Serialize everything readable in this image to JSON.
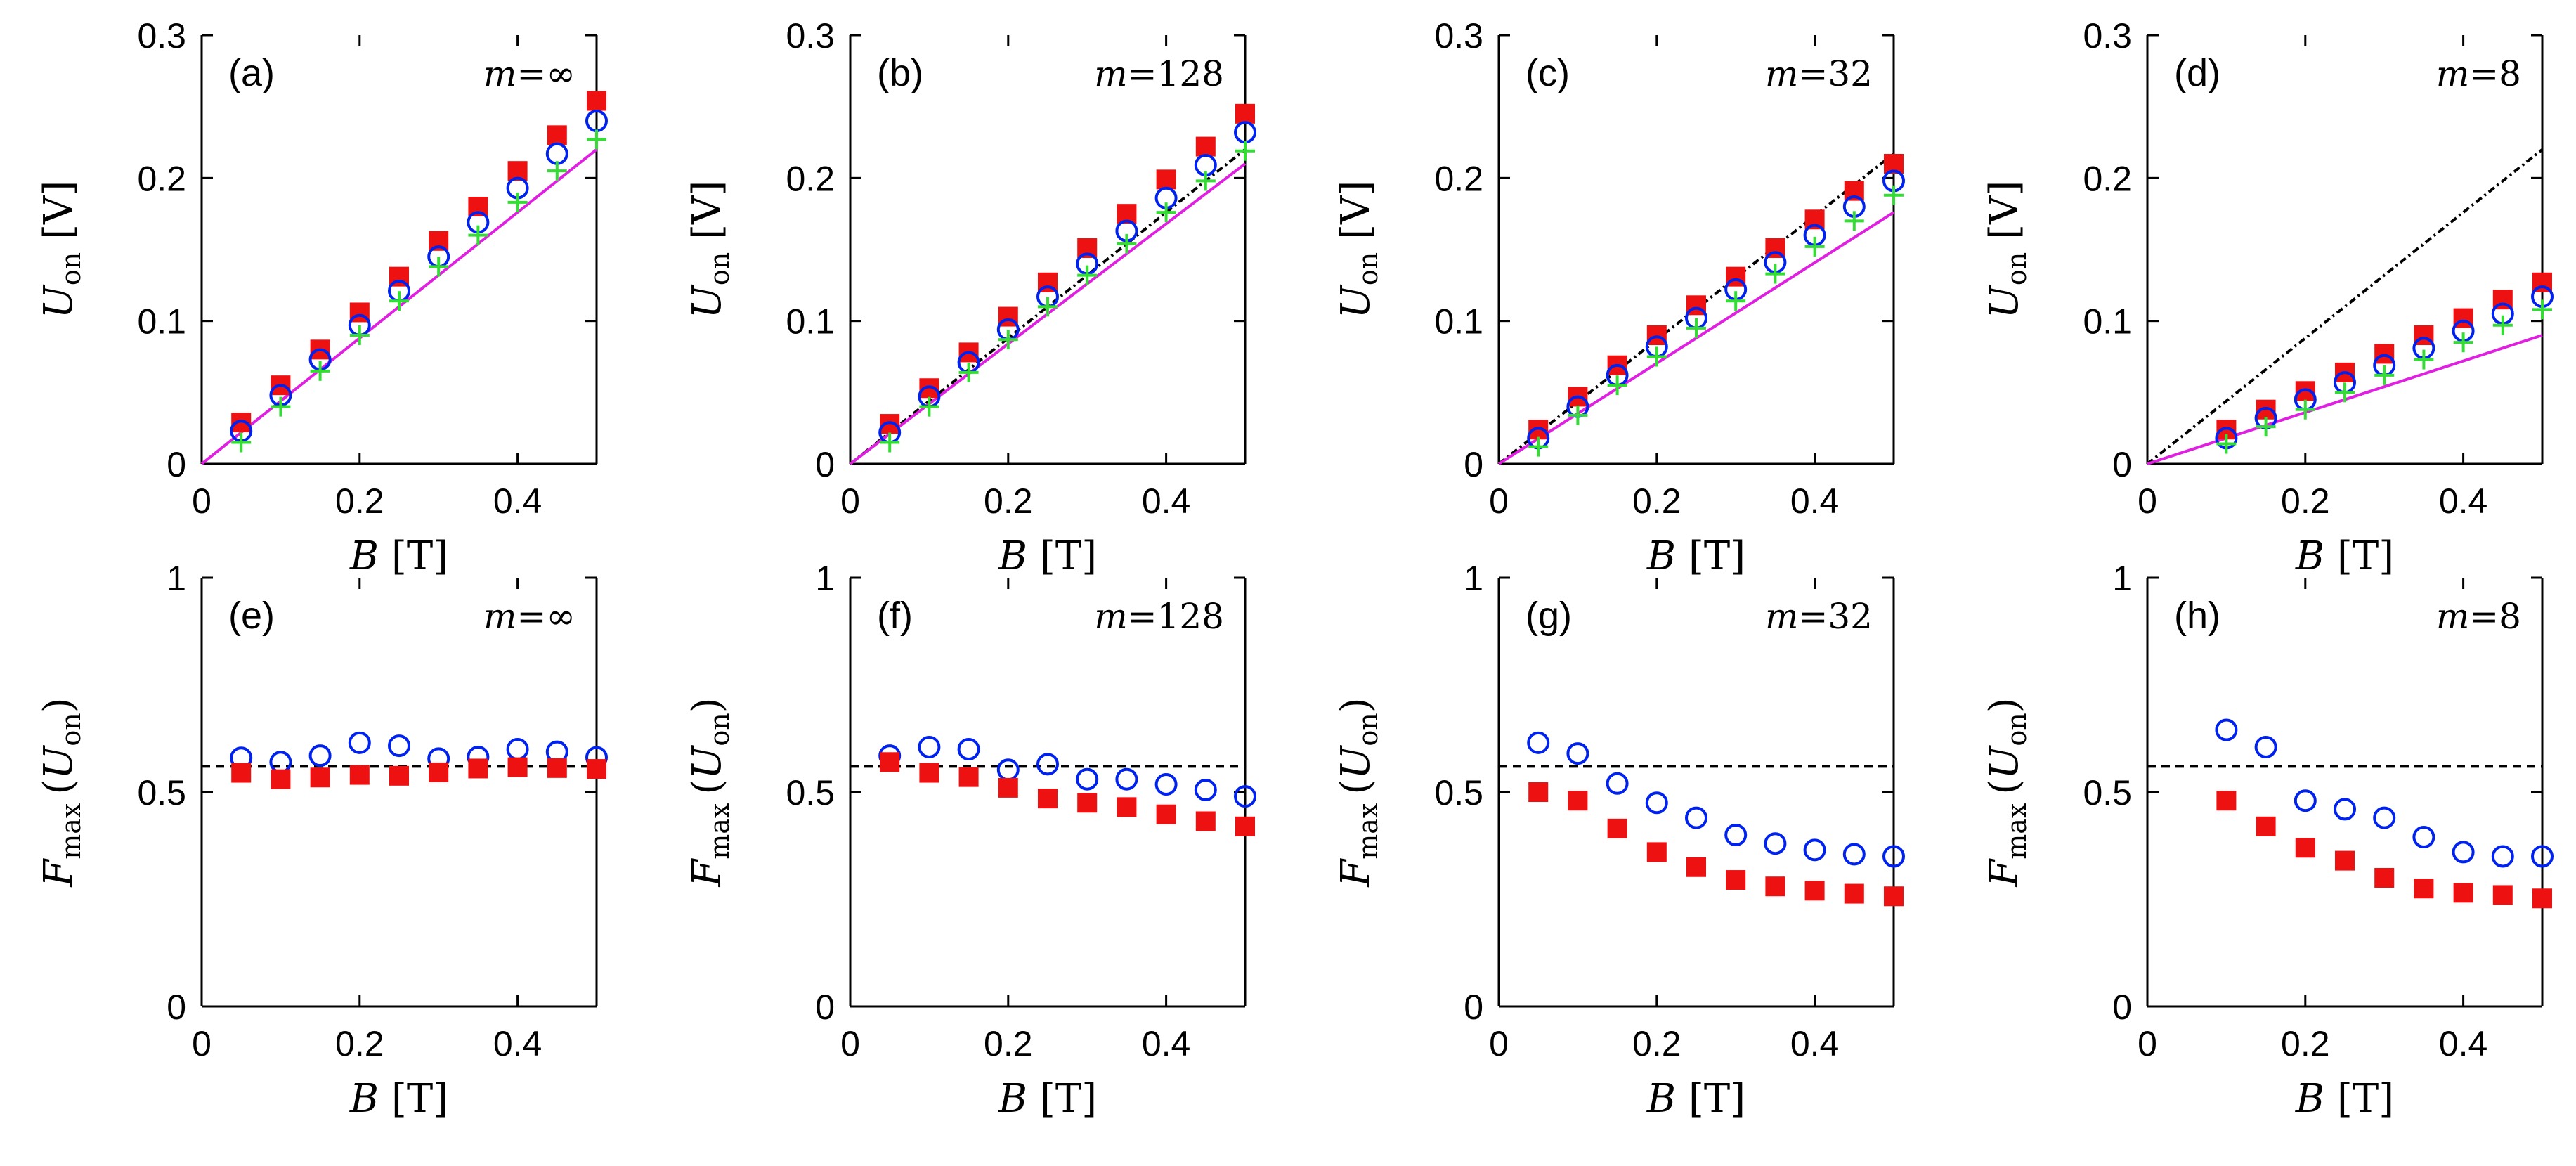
{
  "colors": {
    "square": "#ee1111",
    "circle": "#0022ee",
    "plus": "#33dd33",
    "magenta_line": "#e020e0",
    "ref_line": "#000000"
  },
  "axes_text": {
    "x_title_var": "B",
    "x_title_unit": "[T]",
    "y_top_var": "U",
    "y_top_sub": "on",
    "y_top_unit": "[V]",
    "y_bot_var": "F",
    "y_bot_sub": "max",
    "y_bot_arg_open": "(",
    "y_bot_arg_var": "U",
    "y_bot_arg_sub": "on",
    "y_bot_arg_close": ")"
  },
  "chart_data": [
    {
      "type": "scatter",
      "panel": "(a)",
      "m_var": "m",
      "m_val": "=∞",
      "xlim": [
        0,
        0.5
      ],
      "ylim": [
        0,
        0.3
      ],
      "xticks": [
        "0",
        "0.2",
        "0.4"
      ],
      "yticks": [
        "0",
        "0.1",
        "0.2",
        "0.3"
      ],
      "x": [
        0.05,
        0.1,
        0.15,
        0.2,
        0.25,
        0.3,
        0.35,
        0.4,
        0.45,
        0.5
      ],
      "series": [
        {
          "name": "squares",
          "marker": "square",
          "values": [
            0.029,
            0.055,
            0.08,
            0.106,
            0.131,
            0.156,
            0.18,
            0.205,
            0.23,
            0.254
          ]
        },
        {
          "name": "circles",
          "marker": "circle",
          "values": [
            0.023,
            0.048,
            0.073,
            0.097,
            0.121,
            0.145,
            0.169,
            0.193,
            0.217,
            0.24
          ]
        },
        {
          "name": "plus",
          "marker": "plus",
          "values": [
            0.015,
            0.04,
            0.065,
            0.09,
            0.114,
            0.138,
            0.16,
            0.183,
            0.205,
            0.227
          ]
        }
      ],
      "lines": [
        {
          "name": "magenta",
          "x": [
            0,
            0.5
          ],
          "y": [
            0,
            0.22
          ]
        }
      ]
    },
    {
      "type": "scatter",
      "panel": "(b)",
      "m_var": "m",
      "m_val": "=128",
      "xlim": [
        0,
        0.5
      ],
      "ylim": [
        0,
        0.3
      ],
      "xticks": [
        "0",
        "0.2",
        "0.4"
      ],
      "yticks": [
        "0",
        "0.1",
        "0.2",
        "0.3"
      ],
      "x": [
        0.05,
        0.1,
        0.15,
        0.2,
        0.25,
        0.3,
        0.35,
        0.4,
        0.45,
        0.5
      ],
      "series": [
        {
          "name": "squares",
          "marker": "square",
          "values": [
            0.028,
            0.053,
            0.078,
            0.103,
            0.127,
            0.151,
            0.175,
            0.199,
            0.222,
            0.245
          ]
        },
        {
          "name": "circles",
          "marker": "circle",
          "values": [
            0.022,
            0.047,
            0.071,
            0.094,
            0.117,
            0.14,
            0.163,
            0.186,
            0.209,
            0.232
          ]
        },
        {
          "name": "plus",
          "marker": "plus",
          "values": [
            0.015,
            0.04,
            0.064,
            0.087,
            0.11,
            0.132,
            0.154,
            0.176,
            0.198,
            0.219
          ]
        }
      ],
      "lines": [
        {
          "name": "black-dashed",
          "style": "dashdot",
          "x": [
            0,
            0.5
          ],
          "y": [
            0,
            0.22
          ]
        },
        {
          "name": "magenta",
          "x": [
            0,
            0.5
          ],
          "y": [
            0,
            0.21
          ]
        }
      ]
    },
    {
      "type": "scatter",
      "panel": "(c)",
      "m_var": "m",
      "m_val": "=32",
      "xlim": [
        0,
        0.5
      ],
      "ylim": [
        0,
        0.3
      ],
      "xticks": [
        "0",
        "0.2",
        "0.4"
      ],
      "yticks": [
        "0",
        "0.1",
        "0.2",
        "0.3"
      ],
      "x": [
        0.05,
        0.1,
        0.15,
        0.2,
        0.25,
        0.3,
        0.35,
        0.4,
        0.45,
        0.5
      ],
      "series": [
        {
          "name": "squares",
          "marker": "square",
          "values": [
            0.024,
            0.047,
            0.069,
            0.09,
            0.111,
            0.131,
            0.151,
            0.171,
            0.191,
            0.21
          ]
        },
        {
          "name": "circles",
          "marker": "circle",
          "values": [
            0.018,
            0.04,
            0.062,
            0.082,
            0.102,
            0.122,
            0.141,
            0.16,
            0.18,
            0.198
          ]
        },
        {
          "name": "plus",
          "marker": "plus",
          "values": [
            0.012,
            0.034,
            0.055,
            0.075,
            0.095,
            0.114,
            0.133,
            0.152,
            0.17,
            0.188
          ]
        }
      ],
      "lines": [
        {
          "name": "black-dashed",
          "style": "dashdot",
          "x": [
            0,
            0.5
          ],
          "y": [
            0,
            0.217
          ]
        },
        {
          "name": "magenta",
          "x": [
            0,
            0.5
          ],
          "y": [
            0,
            0.176
          ]
        }
      ]
    },
    {
      "type": "scatter",
      "panel": "(d)",
      "m_var": "m",
      "m_val": "=8",
      "xlim": [
        0,
        0.5
      ],
      "ylim": [
        0,
        0.3
      ],
      "xticks": [
        "0",
        "0.2",
        "0.4"
      ],
      "yticks": [
        "0",
        "0.1",
        "0.2",
        "0.3"
      ],
      "x": [
        0.1,
        0.15,
        0.2,
        0.25,
        0.3,
        0.35,
        0.4,
        0.45,
        0.5
      ],
      "series": [
        {
          "name": "squares",
          "marker": "square",
          "values": [
            0.024,
            0.038,
            0.051,
            0.064,
            0.077,
            0.09,
            0.102,
            0.115,
            0.127
          ]
        },
        {
          "name": "circles",
          "marker": "circle",
          "values": [
            0.018,
            0.032,
            0.045,
            0.057,
            0.069,
            0.081,
            0.093,
            0.105,
            0.117
          ]
        },
        {
          "name": "plus",
          "marker": "plus",
          "values": [
            0.014,
            0.026,
            0.038,
            0.05,
            0.062,
            0.073,
            0.085,
            0.097,
            0.108
          ]
        }
      ],
      "lines": [
        {
          "name": "black-dashed",
          "style": "dashdot",
          "x": [
            0,
            0.5
          ],
          "y": [
            0,
            0.22
          ]
        },
        {
          "name": "magenta",
          "x": [
            0,
            0.5
          ],
          "y": [
            0,
            0.09
          ]
        }
      ]
    },
    {
      "type": "scatter",
      "panel": "(e)",
      "m_var": "m",
      "m_val": "=∞",
      "xlim": [
        0,
        0.5
      ],
      "ylim": [
        0,
        1
      ],
      "xticks": [
        "0",
        "0.2",
        "0.4"
      ],
      "yticks": [
        "0",
        "0.5",
        "1"
      ],
      "x": [
        0.05,
        0.1,
        0.15,
        0.2,
        0.25,
        0.3,
        0.35,
        0.4,
        0.45,
        0.5
      ],
      "series": [
        {
          "name": "circles",
          "marker": "circle",
          "values": [
            0.58,
            0.57,
            0.585,
            0.615,
            0.608,
            0.578,
            0.582,
            0.6,
            0.594,
            0.581
          ]
        },
        {
          "name": "squares",
          "marker": "square",
          "values": [
            0.545,
            0.53,
            0.534,
            0.54,
            0.538,
            0.546,
            0.555,
            0.558,
            0.556,
            0.554
          ]
        }
      ],
      "lines": [
        {
          "name": "black-dashed",
          "style": "dash",
          "x": [
            0,
            0.5
          ],
          "y": [
            0.56,
            0.56
          ]
        }
      ]
    },
    {
      "type": "scatter",
      "panel": "(f)",
      "m_var": "m",
      "m_val": "=128",
      "xlim": [
        0,
        0.5
      ],
      "ylim": [
        0,
        1
      ],
      "xticks": [
        "0",
        "0.2",
        "0.4"
      ],
      "yticks": [
        "0",
        "0.5",
        "1"
      ],
      "x": [
        0.05,
        0.1,
        0.15,
        0.2,
        0.25,
        0.3,
        0.35,
        0.4,
        0.45,
        0.5
      ],
      "series": [
        {
          "name": "circles",
          "marker": "circle",
          "values": [
            0.585,
            0.605,
            0.6,
            0.552,
            0.565,
            0.53,
            0.53,
            0.518,
            0.505,
            0.49
          ]
        },
        {
          "name": "squares",
          "marker": "square",
          "values": [
            0.57,
            0.545,
            0.535,
            0.51,
            0.485,
            0.475,
            0.465,
            0.448,
            0.432,
            0.42
          ]
        }
      ],
      "lines": [
        {
          "name": "black-dashed",
          "style": "dash",
          "x": [
            0,
            0.5
          ],
          "y": [
            0.56,
            0.56
          ]
        }
      ]
    },
    {
      "type": "scatter",
      "panel": "(g)",
      "m_var": "m",
      "m_val": "=32",
      "xlim": [
        0,
        0.5
      ],
      "ylim": [
        0,
        1
      ],
      "xticks": [
        "0",
        "0.2",
        "0.4"
      ],
      "yticks": [
        "0",
        "0.5",
        "1"
      ],
      "x": [
        0.05,
        0.1,
        0.15,
        0.2,
        0.25,
        0.3,
        0.35,
        0.4,
        0.45,
        0.5
      ],
      "series": [
        {
          "name": "circles",
          "marker": "circle",
          "values": [
            0.615,
            0.59,
            0.52,
            0.475,
            0.44,
            0.4,
            0.38,
            0.365,
            0.355,
            0.35
          ]
        },
        {
          "name": "squares",
          "marker": "square",
          "values": [
            0.5,
            0.48,
            0.415,
            0.36,
            0.325,
            0.295,
            0.28,
            0.27,
            0.263,
            0.257
          ]
        }
      ],
      "lines": [
        {
          "name": "black-dashed",
          "style": "dash",
          "x": [
            0,
            0.5
          ],
          "y": [
            0.56,
            0.56
          ]
        }
      ]
    },
    {
      "type": "scatter",
      "panel": "(h)",
      "m_var": "m",
      "m_val": "=8",
      "xlim": [
        0,
        0.5
      ],
      "ylim": [
        0,
        1
      ],
      "xticks": [
        "0",
        "0.2",
        "0.4"
      ],
      "yticks": [
        "0",
        "0.5",
        "1"
      ],
      "x": [
        0.1,
        0.15,
        0.2,
        0.25,
        0.3,
        0.35,
        0.4,
        0.45,
        0.5
      ],
      "series": [
        {
          "name": "circles",
          "marker": "circle",
          "values": [
            0.645,
            0.605,
            0.48,
            0.46,
            0.44,
            0.395,
            0.36,
            0.35,
            0.35
          ]
        },
        {
          "name": "squares",
          "marker": "square",
          "values": [
            0.48,
            0.42,
            0.37,
            0.34,
            0.3,
            0.275,
            0.265,
            0.26,
            0.252
          ]
        }
      ],
      "lines": [
        {
          "name": "black-dashed",
          "style": "dash",
          "x": [
            0,
            0.5
          ],
          "y": [
            0.56,
            0.56
          ]
        }
      ]
    }
  ]
}
